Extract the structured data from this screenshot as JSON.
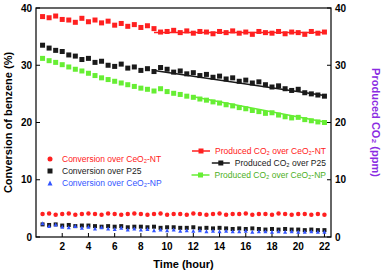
{
  "chart_data": {
    "type": "scatter",
    "x_label": "Time (hour)",
    "y_label": "Conversion of benzene (%)",
    "y2_label": "Produced CO₂ (ppm)",
    "x": [
      0.5,
      1,
      1.5,
      2,
      2.5,
      3,
      3.5,
      4,
      4.5,
      5,
      5.5,
      6,
      6.5,
      7,
      7.5,
      8,
      8.5,
      9,
      9.5,
      10,
      10.5,
      11,
      11.5,
      12,
      12.5,
      13,
      13.5,
      14,
      14.5,
      15,
      15.5,
      16,
      16.5,
      17,
      17.5,
      18,
      18.5,
      19,
      19.5,
      20,
      20.5,
      21,
      21.5,
      22
    ],
    "xlim": [
      0,
      22.5
    ],
    "xticks": [
      2,
      4,
      6,
      8,
      10,
      12,
      14,
      16,
      18,
      20,
      22
    ],
    "ylim": [
      0,
      40
    ],
    "yticks": [
      0,
      10,
      20,
      30,
      40
    ],
    "y2lim": [
      0,
      40
    ],
    "y2ticks": [
      0,
      10,
      20,
      30,
      40
    ],
    "legend": "lower right",
    "series": [
      {
        "name": "Produced CO₂ over CeO₂-NT",
        "color": "#ff2020",
        "marker": "square",
        "axis": "y2",
        "values": [
          38.5,
          38.3,
          38.6,
          38.0,
          37.9,
          37.5,
          38.2,
          37.6,
          37.9,
          37.4,
          37.7,
          37.0,
          37.3,
          36.8,
          37.1,
          36.6,
          36.9,
          36.4,
          35.8,
          35.9,
          36.1,
          35.7,
          36.0,
          35.6,
          35.9,
          35.8,
          35.5,
          35.9,
          35.7,
          36.0,
          35.6,
          35.8,
          35.4,
          35.9,
          35.7,
          35.6,
          35.9,
          35.5,
          35.8,
          35.7,
          35.4,
          35.9,
          35.6,
          35.8
        ]
      },
      {
        "name": "Produced CO₂ over P25",
        "color": "#1a1a1a",
        "marker": "square",
        "axis": "y2",
        "values": [
          33.5,
          33.0,
          32.6,
          32.4,
          31.8,
          31.6,
          31.0,
          31.2,
          30.5,
          30.7,
          30.0,
          29.8,
          30.2,
          29.5,
          29.7,
          29.1,
          29.4,
          28.9,
          29.6,
          29.3,
          28.8,
          29.0,
          28.5,
          28.7,
          28.2,
          28.4,
          27.9,
          28.1,
          27.6,
          27.8,
          27.2,
          27.4,
          26.9,
          27.1,
          26.6,
          26.2,
          26.4,
          25.9,
          25.6,
          25.8,
          25.2,
          25.0,
          24.8,
          24.6
        ]
      },
      {
        "name": "Produced CO₂ over CeO₂-NP",
        "color": "#66ee33",
        "marker": "square",
        "axis": "y2",
        "values": [
          31.2,
          30.8,
          30.5,
          30.1,
          29.7,
          29.3,
          29.0,
          28.6,
          28.2,
          27.8,
          27.5,
          27.2,
          26.9,
          26.6,
          26.3,
          26.0,
          25.8,
          25.5,
          25.9,
          25.4,
          25.1,
          24.9,
          24.6,
          24.4,
          24.1,
          23.9,
          23.6,
          23.4,
          23.1,
          22.9,
          22.6,
          22.4,
          22.1,
          21.9,
          21.6,
          21.7,
          21.3,
          21.0,
          20.8,
          20.9,
          20.5,
          20.3,
          20.1,
          20.0
        ]
      },
      {
        "name": "Conversion over CeO₂-NT",
        "color": "#ff2020",
        "marker": "circle",
        "values": [
          4.0,
          4.1,
          3.9,
          4.0,
          4.1,
          3.9,
          4.0,
          4.1,
          4.0,
          3.9,
          4.1,
          4.0,
          3.9,
          4.0,
          4.1,
          4.0,
          3.9,
          4.0,
          4.1,
          3.9,
          4.0,
          4.0,
          3.9,
          4.1,
          4.0,
          3.9,
          4.0,
          4.1,
          3.9,
          4.0,
          4.0,
          4.1,
          3.9,
          4.0,
          4.0,
          3.9,
          4.1,
          4.0,
          3.9,
          4.0,
          4.0,
          3.9,
          4.0,
          3.9
        ]
      },
      {
        "name": "Conversion over P25",
        "color": "#1a1a1a",
        "marker": "square",
        "values": [
          2.2,
          2.1,
          2.2,
          2.0,
          2.1,
          1.9,
          2.0,
          2.0,
          1.9,
          1.8,
          1.9,
          1.8,
          1.9,
          1.7,
          1.8,
          1.8,
          1.7,
          1.8,
          1.6,
          1.7,
          1.7,
          1.6,
          1.6,
          1.7,
          1.5,
          1.6,
          1.5,
          1.6,
          1.5,
          1.4,
          1.5,
          1.4,
          1.5,
          1.4,
          1.3,
          1.4,
          1.3,
          1.4,
          1.3,
          1.3,
          1.2,
          1.3,
          1.2,
          1.2
        ]
      },
      {
        "name": "Conversion over CeO₂-NP",
        "color": "#3355ff",
        "marker": "triangle",
        "values": [
          2.4,
          1.9,
          2.2,
          1.8,
          1.7,
          1.9,
          1.6,
          1.8,
          1.5,
          1.7,
          1.5,
          1.4,
          1.6,
          1.3,
          1.5,
          1.3,
          1.4,
          1.2,
          1.3,
          1.2,
          1.3,
          1.1,
          1.2,
          1.1,
          1.2,
          1.0,
          1.1,
          1.0,
          1.1,
          1.0,
          1.0,
          1.1,
          0.9,
          1.0,
          1.0,
          0.9,
          1.0,
          0.9,
          1.0,
          0.9,
          0.9,
          1.0,
          0.9,
          0.9
        ]
      }
    ],
    "trend_lines": [
      {
        "color": "#ff2020",
        "axis": "y2",
        "x": [
          9,
          22
        ],
        "values": [
          35.7,
          35.7
        ]
      },
      {
        "color": "#1a1a1a",
        "axis": "y2",
        "x": [
          9,
          22
        ],
        "values": [
          29.1,
          24.7
        ]
      },
      {
        "color": "#66ee33",
        "axis": "y2",
        "x": [
          12,
          22
        ],
        "values": [
          24.5,
          20.1
        ]
      }
    ]
  }
}
